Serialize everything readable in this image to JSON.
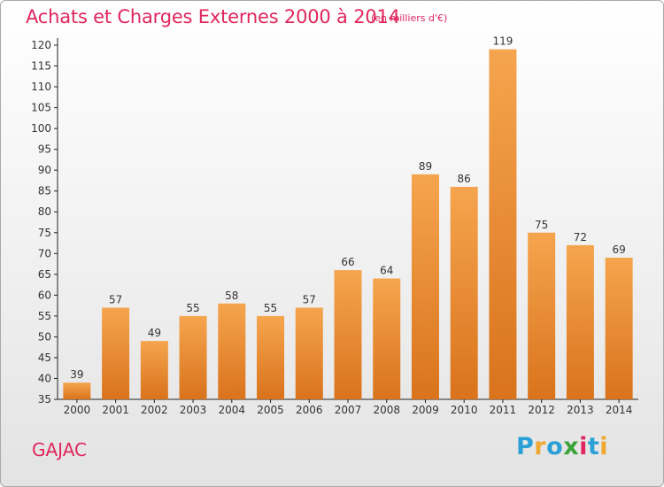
{
  "title": "Achats et Charges Externes 2000 à 2014",
  "unit_note": "(en milliers d'€)",
  "commune": "GAJAC",
  "logo": {
    "letters": [
      "P",
      "r",
      "o",
      "x",
      "i",
      "t",
      "i"
    ],
    "colors": [
      "#2aa0d6",
      "#f0a830",
      "#2aa0d6",
      "#3aa33a",
      "#e0265e",
      "#2aa0d6",
      "#f0a830"
    ]
  },
  "colors": {
    "accent": "#e0265e",
    "bar_top": "#f5a54e",
    "bar_bottom": "#d9731c"
  },
  "chart_data": {
    "type": "bar",
    "categories": [
      "2000",
      "2001",
      "2002",
      "2003",
      "2004",
      "2005",
      "2006",
      "2007",
      "2008",
      "2009",
      "2010",
      "2011",
      "2012",
      "2013",
      "2014"
    ],
    "values": [
      39,
      57,
      49,
      55,
      58,
      55,
      57,
      66,
      64,
      89,
      86,
      119,
      75,
      72,
      69
    ],
    "title": "Achats et Charges Externes 2000 à 2014",
    "xlabel": "",
    "ylabel": "",
    "ylim": [
      35,
      120
    ],
    "yticks": [
      35,
      40,
      45,
      50,
      55,
      60,
      65,
      70,
      75,
      80,
      85,
      90,
      95,
      100,
      105,
      110,
      115,
      120
    ],
    "grid": false,
    "data_labels": true
  }
}
